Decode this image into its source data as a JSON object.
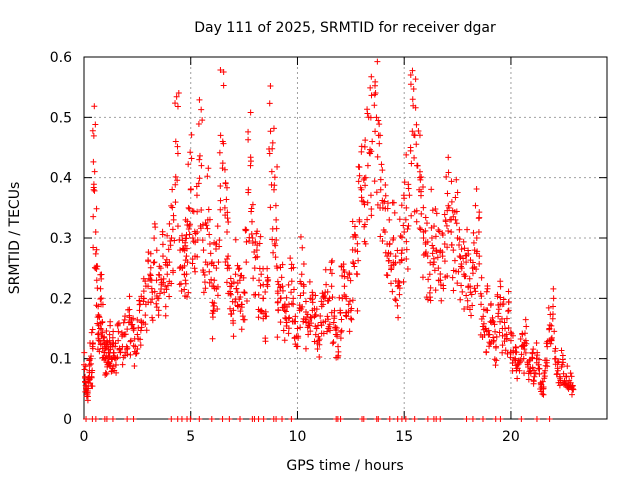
{
  "chart_data": {
    "type": "scatter",
    "title": "Day 111 of 2025, SRMTID for receiver dgar",
    "xlabel": "GPS time / hours",
    "ylabel": "SRMTID / TECUs",
    "xlim": [
      0,
      24.5
    ],
    "ylim": [
      0,
      0.6
    ],
    "x_ticks": [
      0,
      5,
      10,
      15,
      20
    ],
    "y_ticks": [
      0,
      0.1,
      0.2,
      0.3,
      0.4,
      0.5,
      0.6
    ],
    "x_tick_labels": [
      "0",
      "5",
      "10",
      "15",
      "20"
    ],
    "y_tick_labels": [
      "0",
      "0.1",
      "0.2",
      "0.3",
      "0.4",
      "0.5",
      "0.6"
    ],
    "grid": true,
    "marker": "+",
    "series_color": "#ff0000",
    "series": [
      {
        "name": "SRMTID",
        "x": [
          0.0,
          0.05,
          0.1,
          0.15,
          0.2,
          0.25,
          0.3,
          0.35,
          0.4,
          0.45,
          0.5,
          0.55,
          0.6,
          0.65,
          0.7,
          0.75,
          0.8,
          0.85,
          0.9,
          0.95,
          1.0,
          1.05,
          1.1,
          1.15,
          1.2,
          1.25,
          1.3,
          1.35,
          1.4,
          1.5,
          1.6,
          1.7,
          1.8,
          1.9,
          2.0,
          2.1,
          2.2,
          2.3,
          2.4,
          2.5,
          2.6,
          2.7,
          2.8,
          2.9,
          3.0,
          3.1,
          3.2,
          3.3,
          3.4,
          3.5,
          3.6,
          3.7,
          3.8,
          3.9,
          4.0,
          4.1,
          4.2,
          4.3,
          4.4,
          4.5,
          4.6,
          4.7,
          4.75,
          4.8,
          4.85,
          4.9,
          5.0,
          5.1,
          5.2,
          5.3,
          5.4,
          5.5,
          5.6,
          5.7,
          5.8,
          5.9,
          6.0,
          6.05,
          6.1,
          6.2,
          6.3,
          6.4,
          6.5,
          6.6,
          6.7,
          6.75,
          6.8,
          6.9,
          7.0,
          7.1,
          7.2,
          7.3,
          7.4,
          7.5,
          7.6,
          7.7,
          7.8,
          7.9,
          8.0,
          8.1,
          8.2,
          8.3,
          8.4,
          8.5,
          8.6,
          8.7,
          8.8,
          8.9,
          9.0,
          9.05,
          9.1,
          9.2,
          9.3,
          9.4,
          9.5,
          9.6,
          9.7,
          9.8,
          9.9,
          10.0,
          10.1,
          10.2,
          10.3,
          10.4,
          10.5,
          10.6,
          10.7,
          10.8,
          10.9,
          11.0,
          11.1,
          11.2,
          11.3,
          11.4,
          11.5,
          11.6,
          11.7,
          11.8,
          11.9,
          12.0,
          12.1,
          12.2,
          12.3,
          12.4,
          12.5,
          12.6,
          12.7,
          12.8,
          12.9,
          13.0,
          13.1,
          13.2,
          13.3,
          13.4,
          13.5,
          13.6,
          13.7,
          13.8,
          13.9,
          14.0,
          14.1,
          14.2,
          14.3,
          14.4,
          14.5,
          14.6,
          14.7,
          14.8,
          14.9,
          15.0,
          15.1,
          15.2,
          15.3,
          15.4,
          15.5,
          15.6,
          15.7,
          15.8,
          15.9,
          16.0,
          16.1,
          16.2,
          16.3,
          16.4,
          16.5,
          16.6,
          16.7,
          16.8,
          16.9,
          17.0,
          17.1,
          17.2,
          17.3,
          17.4,
          17.5,
          17.6,
          17.7,
          17.8,
          17.9,
          18.0,
          18.1,
          18.2,
          18.3,
          18.4,
          18.5,
          18.6,
          18.7,
          18.8,
          18.9,
          19.0,
          19.1,
          19.2,
          19.3,
          19.4,
          19.5,
          19.6,
          19.7,
          19.8,
          19.9,
          20.0,
          20.1,
          20.2,
          20.3,
          20.4,
          20.5,
          20.6,
          20.7,
          20.8,
          20.9,
          21.0,
          21.1,
          21.2,
          21.3,
          21.4,
          21.5,
          21.6,
          21.7,
          21.8,
          21.9,
          22.0,
          22.1,
          22.2,
          22.3,
          22.4,
          22.5,
          22.6,
          22.7,
          22.8,
          22.9
        ],
        "y": [
          0.09,
          0.07,
          0.05,
          0.04,
          0.06,
          0.08,
          0.1,
          0.07,
          0.12,
          0.38,
          0.41,
          0.31,
          0.23,
          0.14,
          0.17,
          0.15,
          0.19,
          0.16,
          0.13,
          0.11,
          0.1,
          0.12,
          0.09,
          0.11,
          0.13,
          0.12,
          0.1,
          0.12,
          0.11,
          0.1,
          0.13,
          0.11,
          0.12,
          0.14,
          0.12,
          0.16,
          0.13,
          0.15,
          0.12,
          0.14,
          0.18,
          0.16,
          0.2,
          0.19,
          0.22,
          0.24,
          0.21,
          0.26,
          0.23,
          0.2,
          0.25,
          0.27,
          0.22,
          0.24,
          0.26,
          0.3,
          0.33,
          0.46,
          0.44,
          0.28,
          0.25,
          0.24,
          0.23,
          0.27,
          0.26,
          0.35,
          0.38,
          0.3,
          0.27,
          0.31,
          0.43,
          0.42,
          0.28,
          0.26,
          0.33,
          0.29,
          0.22,
          0.18,
          0.23,
          0.25,
          0.26,
          0.47,
          0.46,
          0.35,
          0.31,
          0.27,
          0.25,
          0.22,
          0.18,
          0.24,
          0.21,
          0.23,
          0.19,
          0.21,
          0.26,
          0.38,
          0.42,
          0.3,
          0.25,
          0.28,
          0.23,
          0.24,
          0.2,
          0.17,
          0.22,
          0.44,
          0.41,
          0.38,
          0.33,
          0.25,
          0.18,
          0.2,
          0.22,
          0.18,
          0.16,
          0.19,
          0.21,
          0.2,
          0.17,
          0.15,
          0.18,
          0.24,
          0.22,
          0.16,
          0.14,
          0.2,
          0.18,
          0.17,
          0.15,
          0.13,
          0.16,
          0.19,
          0.21,
          0.17,
          0.2,
          0.22,
          0.16,
          0.14,
          0.12,
          0.18,
          0.2,
          0.22,
          0.17,
          0.19,
          0.18,
          0.26,
          0.28,
          0.24,
          0.33,
          0.38,
          0.36,
          0.4,
          0.42,
          0.44,
          0.46,
          0.52,
          0.5,
          0.47,
          0.38,
          0.35,
          0.31,
          0.29,
          0.33,
          0.25,
          0.3,
          0.27,
          0.22,
          0.26,
          0.28,
          0.31,
          0.35,
          0.32,
          0.45,
          0.53,
          0.47,
          0.42,
          0.38,
          0.34,
          0.31,
          0.29,
          0.27,
          0.24,
          0.3,
          0.26,
          0.28,
          0.25,
          0.23,
          0.27,
          0.29,
          0.32,
          0.35,
          0.31,
          0.28,
          0.33,
          0.3,
          0.27,
          0.25,
          0.24,
          0.26,
          0.22,
          0.21,
          0.25,
          0.28,
          0.3,
          0.31,
          0.19,
          0.17,
          0.15,
          0.18,
          0.14,
          0.16,
          0.13,
          0.12,
          0.17,
          0.19,
          0.15,
          0.16,
          0.14,
          0.18,
          0.13,
          0.11,
          0.1,
          0.09,
          0.08,
          0.12,
          0.1,
          0.13,
          0.09,
          0.08,
          0.11,
          0.07,
          0.1,
          0.09,
          0.06,
          0.05,
          0.08,
          0.12,
          0.15,
          0.13,
          0.2,
          0.1,
          0.08,
          0.07,
          0.09,
          0.06,
          0.07,
          0.05,
          0.06,
          0.05
        ]
      }
    ]
  }
}
